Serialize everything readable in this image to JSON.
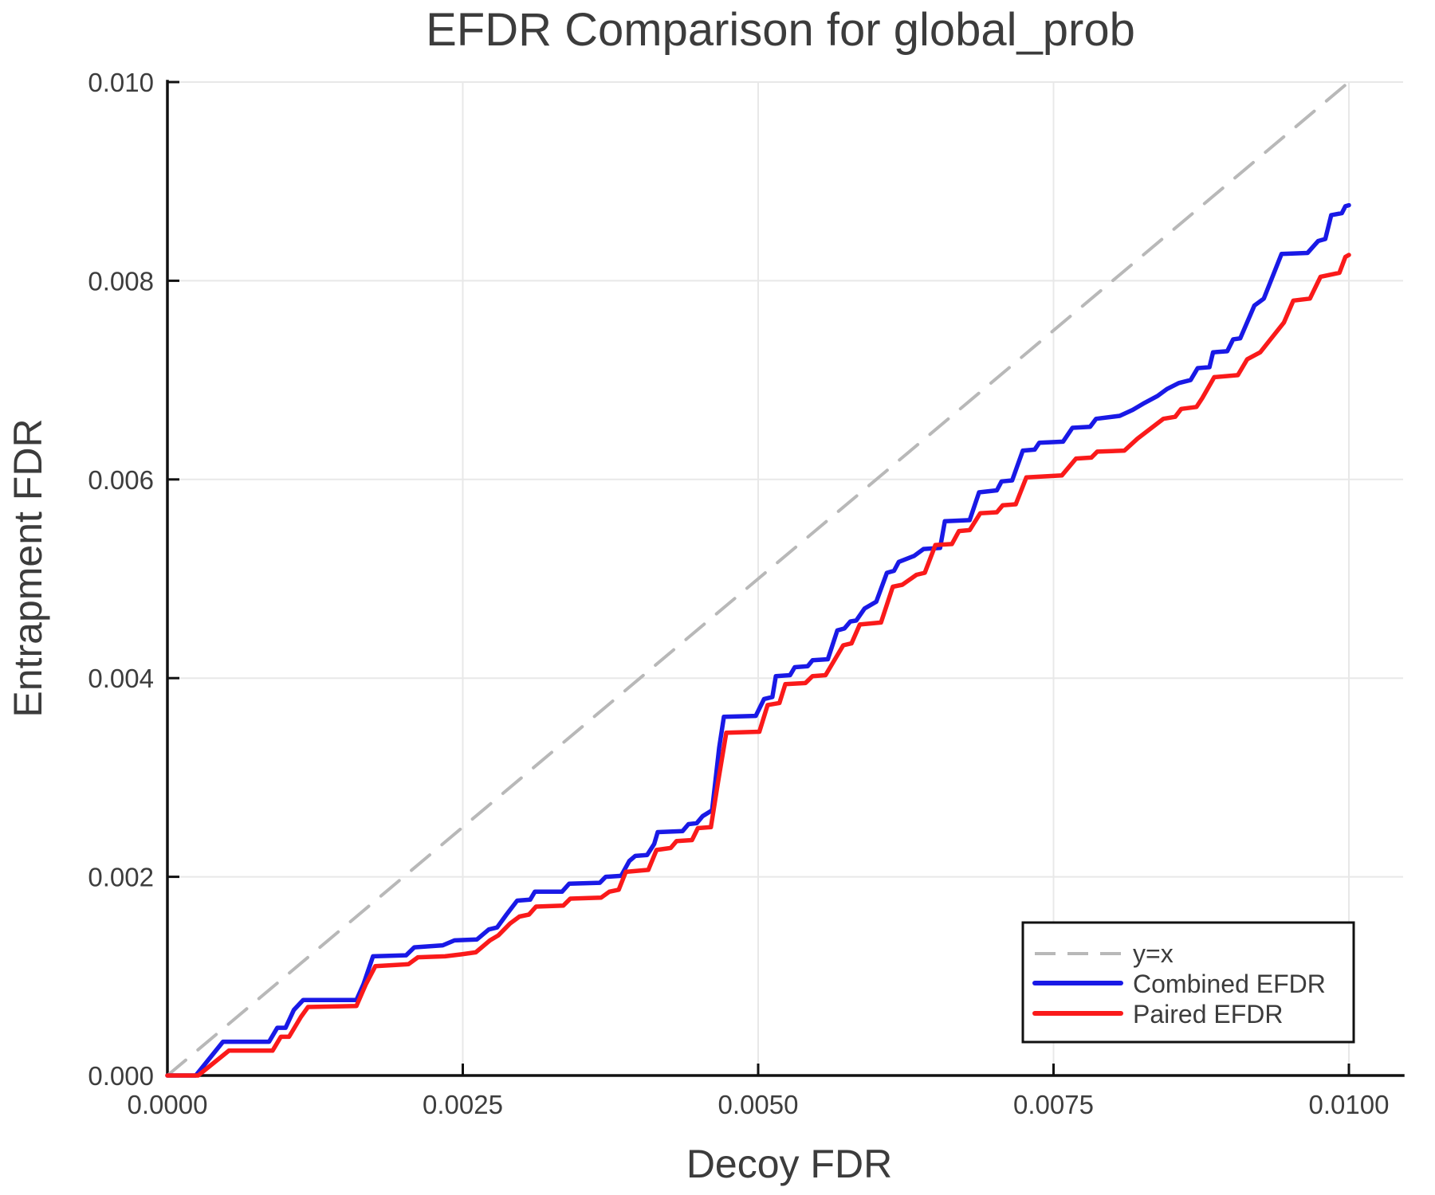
{
  "title": "EFDR Comparison for global_prob",
  "colors": {
    "combined": "#1919e6",
    "paired": "#fa1a1a",
    "identity": "#b8b8b8",
    "grid": "#e8e8e8",
    "text": "#3d3d3d",
    "axis": "#111111"
  },
  "chart_data": {
    "type": "line",
    "title": "EFDR Comparison for global_prob",
    "xlabel": "Decoy FDR",
    "ylabel": "Entrapment FDR",
    "xlim": [
      0.0,
      0.0104
    ],
    "ylim": [
      0.0,
      0.01
    ],
    "grid": true,
    "legend_position": "bottom-right",
    "x_ticks": [
      0.0,
      0.0025,
      0.005,
      0.0075,
      0.01
    ],
    "x_tick_labels": [
      "0.0000",
      "0.0025",
      "0.0050",
      "0.0075",
      "0.0100"
    ],
    "y_ticks": [
      0.0,
      0.002,
      0.004,
      0.006,
      0.008,
      0.01
    ],
    "y_tick_labels": [
      "0.000",
      "0.002",
      "0.004",
      "0.006",
      "0.008",
      "0.010"
    ],
    "series": [
      {
        "name": "y=x",
        "color": "#b8b8b8",
        "dash": true,
        "points": [
          [
            0.0,
            0.0
          ],
          [
            0.01,
            0.01
          ]
        ]
      },
      {
        "name": "Combined EFDR",
        "color": "#1919e6",
        "dash": false,
        "points": [
          [
            0.0,
            0.0
          ],
          [
            0.00024,
            0.0
          ],
          [
            0.00047,
            0.00034
          ],
          [
            0.00086,
            0.00034
          ],
          [
            0.00093,
            0.00048
          ],
          [
            0.001,
            0.00048
          ],
          [
            0.00107,
            0.00066
          ],
          [
            0.00115,
            0.00076
          ],
          [
            0.0016,
            0.00076
          ],
          [
            0.00166,
            0.00092
          ],
          [
            0.00174,
            0.0012
          ],
          [
            0.00202,
            0.00121
          ],
          [
            0.00209,
            0.00129
          ],
          [
            0.00233,
            0.00131
          ],
          [
            0.00243,
            0.00136
          ],
          [
            0.00262,
            0.00137
          ],
          [
            0.00272,
            0.00147
          ],
          [
            0.00279,
            0.00149
          ],
          [
            0.00287,
            0.00162
          ],
          [
            0.00296,
            0.00176
          ],
          [
            0.00307,
            0.00177
          ],
          [
            0.00311,
            0.00185
          ],
          [
            0.00334,
            0.00185
          ],
          [
            0.0034,
            0.00193
          ],
          [
            0.00366,
            0.00194
          ],
          [
            0.00371,
            0.002
          ],
          [
            0.00384,
            0.00201
          ],
          [
            0.00391,
            0.00216
          ],
          [
            0.00396,
            0.00221
          ],
          [
            0.00406,
            0.00222
          ],
          [
            0.00412,
            0.00233
          ],
          [
            0.00415,
            0.00245
          ],
          [
            0.00436,
            0.00246
          ],
          [
            0.00441,
            0.00253
          ],
          [
            0.00448,
            0.00254
          ],
          [
            0.00453,
            0.00261
          ],
          [
            0.00461,
            0.00267
          ],
          [
            0.00467,
            0.0033
          ],
          [
            0.00471,
            0.00361
          ],
          [
            0.00498,
            0.00362
          ],
          [
            0.00505,
            0.00379
          ],
          [
            0.00512,
            0.00381
          ],
          [
            0.00515,
            0.00402
          ],
          [
            0.00527,
            0.00403
          ],
          [
            0.00531,
            0.00411
          ],
          [
            0.00542,
            0.00412
          ],
          [
            0.00546,
            0.00418
          ],
          [
            0.00559,
            0.00419
          ],
          [
            0.00567,
            0.00448
          ],
          [
            0.00573,
            0.0045
          ],
          [
            0.00578,
            0.00457
          ],
          [
            0.00583,
            0.00458
          ],
          [
            0.0059,
            0.0047
          ],
          [
            0.006,
            0.00477
          ],
          [
            0.00609,
            0.00506
          ],
          [
            0.00615,
            0.00508
          ],
          [
            0.00619,
            0.00517
          ],
          [
            0.00632,
            0.00523
          ],
          [
            0.0064,
            0.0053
          ],
          [
            0.00654,
            0.00531
          ],
          [
            0.00658,
            0.00558
          ],
          [
            0.00679,
            0.00559
          ],
          [
            0.00687,
            0.00587
          ],
          [
            0.00702,
            0.00589
          ],
          [
            0.00706,
            0.00598
          ],
          [
            0.00715,
            0.00599
          ],
          [
            0.00724,
            0.00629
          ],
          [
            0.00734,
            0.0063
          ],
          [
            0.00738,
            0.00637
          ],
          [
            0.00758,
            0.00638
          ],
          [
            0.00766,
            0.00652
          ],
          [
            0.00781,
            0.00653
          ],
          [
            0.00786,
            0.00661
          ],
          [
            0.00806,
            0.00664
          ],
          [
            0.00817,
            0.0067
          ],
          [
            0.00827,
            0.00677
          ],
          [
            0.00838,
            0.00684
          ],
          [
            0.00846,
            0.00691
          ],
          [
            0.00856,
            0.00697
          ],
          [
            0.00866,
            0.007
          ],
          [
            0.00872,
            0.00712
          ],
          [
            0.00882,
            0.00713
          ],
          [
            0.00885,
            0.00728
          ],
          [
            0.00897,
            0.00729
          ],
          [
            0.00902,
            0.00741
          ],
          [
            0.00908,
            0.00742
          ],
          [
            0.0092,
            0.00775
          ],
          [
            0.00928,
            0.00782
          ],
          [
            0.00943,
            0.00827
          ],
          [
            0.00965,
            0.00828
          ],
          [
            0.00974,
            0.0084
          ],
          [
            0.0098,
            0.00842
          ],
          [
            0.00985,
            0.00866
          ],
          [
            0.00994,
            0.00868
          ],
          [
            0.00997,
            0.00875
          ],
          [
            0.01,
            0.00876
          ]
        ]
      },
      {
        "name": "Paired EFDR",
        "color": "#fa1a1a",
        "dash": false,
        "points": [
          [
            0.0,
            0.0
          ],
          [
            0.00026,
            0.0
          ],
          [
            0.00052,
            0.00025
          ],
          [
            0.00089,
            0.00025
          ],
          [
            0.00096,
            0.00039
          ],
          [
            0.00103,
            0.00039
          ],
          [
            0.00113,
            0.00059
          ],
          [
            0.00119,
            0.00069
          ],
          [
            0.0016,
            0.0007
          ],
          [
            0.00168,
            0.00092
          ],
          [
            0.00176,
            0.0011
          ],
          [
            0.00204,
            0.00112
          ],
          [
            0.00212,
            0.00119
          ],
          [
            0.00235,
            0.0012
          ],
          [
            0.00249,
            0.00122
          ],
          [
            0.00261,
            0.00124
          ],
          [
            0.00273,
            0.00136
          ],
          [
            0.0028,
            0.00141
          ],
          [
            0.0029,
            0.00153
          ],
          [
            0.00298,
            0.0016
          ],
          [
            0.00306,
            0.00162
          ],
          [
            0.00312,
            0.0017
          ],
          [
            0.00335,
            0.00171
          ],
          [
            0.00341,
            0.00178
          ],
          [
            0.00367,
            0.00179
          ],
          [
            0.00374,
            0.00185
          ],
          [
            0.00382,
            0.00187
          ],
          [
            0.00388,
            0.00205
          ],
          [
            0.00407,
            0.00207
          ],
          [
            0.00414,
            0.00227
          ],
          [
            0.00426,
            0.00229
          ],
          [
            0.00431,
            0.00236
          ],
          [
            0.00444,
            0.00237
          ],
          [
            0.00449,
            0.00249
          ],
          [
            0.0046,
            0.0025
          ],
          [
            0.00466,
            0.00295
          ],
          [
            0.00473,
            0.00345
          ],
          [
            0.00501,
            0.00346
          ],
          [
            0.00508,
            0.00373
          ],
          [
            0.00518,
            0.00375
          ],
          [
            0.00523,
            0.00394
          ],
          [
            0.0054,
            0.00395
          ],
          [
            0.00546,
            0.00402
          ],
          [
            0.00557,
            0.00403
          ],
          [
            0.00572,
            0.00433
          ],
          [
            0.00579,
            0.00435
          ],
          [
            0.00586,
            0.00454
          ],
          [
            0.00604,
            0.00456
          ],
          [
            0.00614,
            0.00492
          ],
          [
            0.00622,
            0.00494
          ],
          [
            0.00634,
            0.00504
          ],
          [
            0.00641,
            0.00506
          ],
          [
            0.0065,
            0.00534
          ],
          [
            0.00664,
            0.00535
          ],
          [
            0.0067,
            0.00548
          ],
          [
            0.00679,
            0.00549
          ],
          [
            0.00688,
            0.00566
          ],
          [
            0.00702,
            0.00567
          ],
          [
            0.00707,
            0.00574
          ],
          [
            0.00718,
            0.00575
          ],
          [
            0.00727,
            0.00602
          ],
          [
            0.00757,
            0.00604
          ],
          [
            0.00769,
            0.00621
          ],
          [
            0.00782,
            0.00622
          ],
          [
            0.00787,
            0.00628
          ],
          [
            0.0081,
            0.00629
          ],
          [
            0.00821,
            0.00641
          ],
          [
            0.00832,
            0.00651
          ],
          [
            0.00843,
            0.00661
          ],
          [
            0.00853,
            0.00663
          ],
          [
            0.00858,
            0.00671
          ],
          [
            0.00871,
            0.00673
          ],
          [
            0.00876,
            0.00682
          ],
          [
            0.00886,
            0.00703
          ],
          [
            0.00906,
            0.00705
          ],
          [
            0.00914,
            0.00721
          ],
          [
            0.00925,
            0.00728
          ],
          [
            0.00933,
            0.0074
          ],
          [
            0.00945,
            0.00758
          ],
          [
            0.00953,
            0.0078
          ],
          [
            0.00967,
            0.00782
          ],
          [
            0.00976,
            0.00804
          ],
          [
            0.00992,
            0.00808
          ],
          [
            0.00997,
            0.00824
          ],
          [
            0.01,
            0.00826
          ]
        ]
      }
    ]
  }
}
